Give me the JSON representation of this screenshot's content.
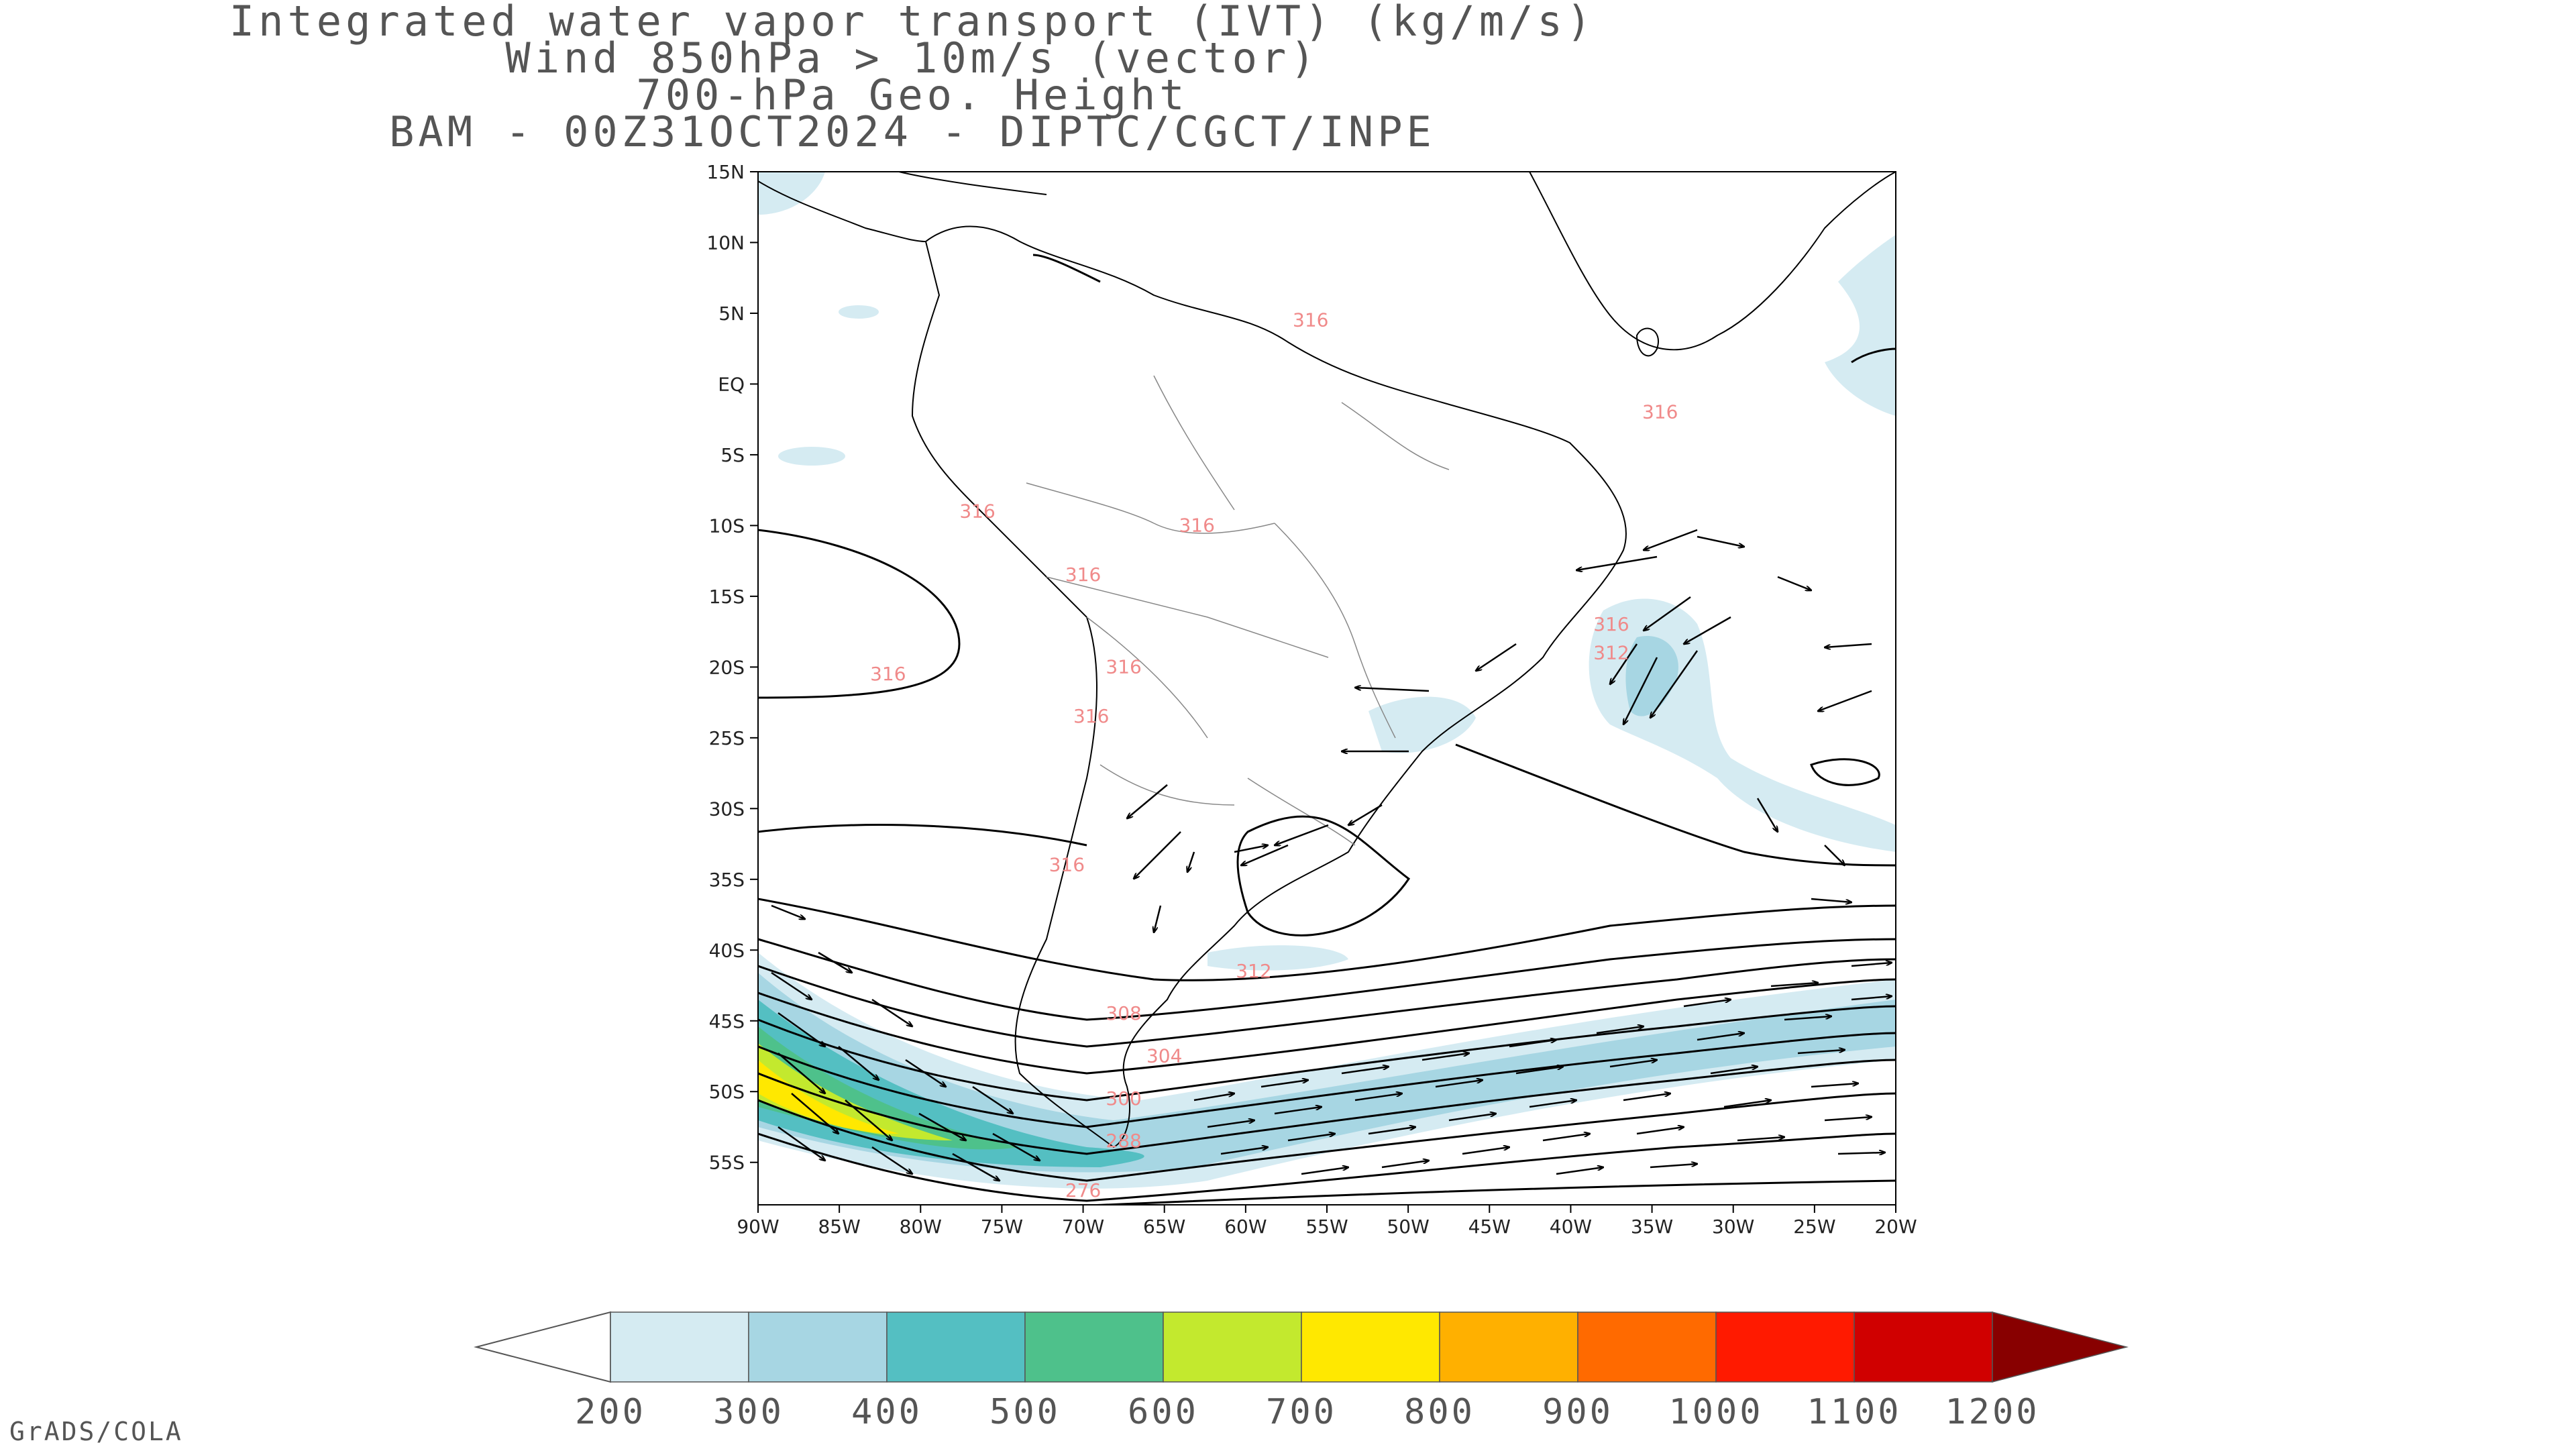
{
  "title": {
    "line1": "Integrated water vapor transport (IVT) (kg/m/s)",
    "line2": "Wind 850hPa > 10m/s (vector)",
    "line3": "700-hPa Geo. Height",
    "line4": "BAM - 00Z31OCT2024 - DIPTC/CGCT/INPE"
  },
  "axes": {
    "lat_labels": [
      "15N",
      "10N",
      "5N",
      "EQ",
      "5S",
      "10S",
      "15S",
      "20S",
      "25S",
      "30S",
      "35S",
      "40S",
      "45S",
      "50S",
      "55S"
    ],
    "lon_labels": [
      "90W",
      "85W",
      "80W",
      "75W",
      "70W",
      "65W",
      "60W",
      "55W",
      "50W",
      "45W",
      "40W",
      "35W",
      "30W",
      "25W",
      "20W"
    ],
    "lat_range": [
      -58,
      15
    ],
    "lon_range": [
      -90,
      -20
    ]
  },
  "contour_labels": [
    {
      "text": "316",
      "lon": -82,
      "lat": -20.5
    },
    {
      "text": "316",
      "lon": -56,
      "lat": 4.5
    },
    {
      "text": "316",
      "lon": -34.5,
      "lat": -2
    },
    {
      "text": "316",
      "lon": -76.5,
      "lat": -9
    },
    {
      "text": "316",
      "lon": -63,
      "lat": -10
    },
    {
      "text": "316",
      "lon": -70,
      "lat": -13.5
    },
    {
      "text": "316",
      "lon": -67.5,
      "lat": -20
    },
    {
      "text": "316",
      "lon": -69.5,
      "lat": -23.5
    },
    {
      "text": "316",
      "lon": -37.5,
      "lat": -17
    },
    {
      "text": "312",
      "lon": -37.5,
      "lat": -19
    },
    {
      "text": "316",
      "lon": -71,
      "lat": -34
    },
    {
      "text": "312",
      "lon": -59.5,
      "lat": -41.5
    },
    {
      "text": "308",
      "lon": -67.5,
      "lat": -44.5
    },
    {
      "text": "304",
      "lon": -65,
      "lat": -47.5
    },
    {
      "text": "300",
      "lon": -67.5,
      "lat": -50.5
    },
    {
      "text": "288",
      "lon": -67.5,
      "lat": -53.5
    },
    {
      "text": "276",
      "lon": -70,
      "lat": -57
    }
  ],
  "colorbar": {
    "labels": [
      "200",
      "300",
      "400",
      "500",
      "600",
      "700",
      "800",
      "900",
      "1000",
      "1100",
      "1200"
    ],
    "colors": [
      "#d5ebf2",
      "#a7d6e3",
      "#54bfc2",
      "#4ec18b",
      "#c3e92e",
      "#ffe800",
      "#ffb000",
      "#ff6a00",
      "#ff1a00",
      "#d00000",
      "#880000"
    ]
  },
  "credit": "GrADS/COLA"
}
